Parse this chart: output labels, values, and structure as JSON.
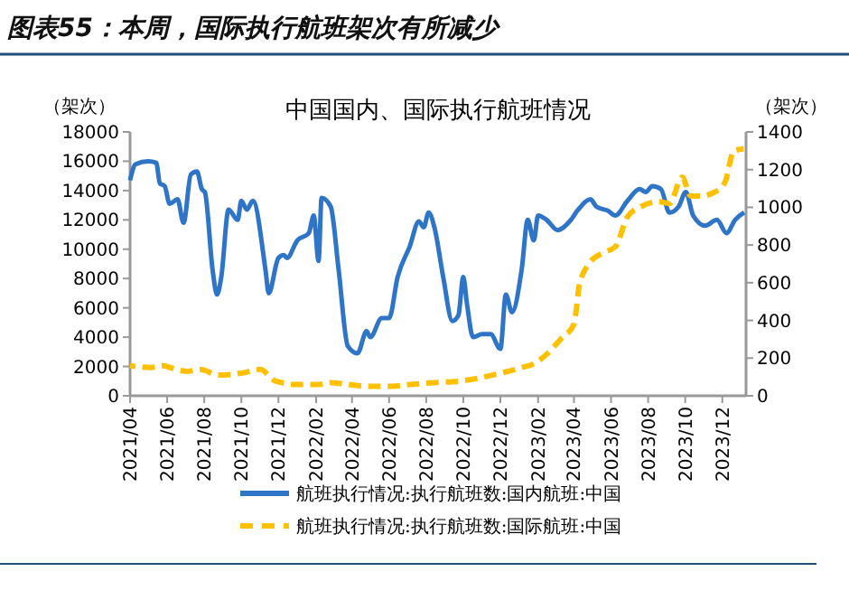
{
  "chart_data": {
    "type": "line",
    "title": "图表55：本周，国际执行航班架次有所减少",
    "subtitle": "中国国内、国际执行航班情况",
    "ylabel": "（架次）",
    "y2label": "（架次）",
    "xlim": [
      "2021-04-01",
      "2024-01-09"
    ],
    "xticks": [
      {
        "value": "2021-04",
        "label": "2021/04"
      },
      {
        "value": "2021-06",
        "label": "2021/06"
      },
      {
        "value": "2021-08",
        "label": "2021/08"
      },
      {
        "value": "2021-10",
        "label": "2021/10"
      },
      {
        "value": "2021-12",
        "label": "2021/12"
      },
      {
        "value": "2022-02",
        "label": "2022/02"
      },
      {
        "value": "2022-04",
        "label": "2022/04"
      },
      {
        "value": "2022-06",
        "label": "2022/06"
      },
      {
        "value": "2022-08",
        "label": "2022/08"
      },
      {
        "value": "2022-10",
        "label": "2022/10"
      },
      {
        "value": "2022-12",
        "label": "2022/12"
      },
      {
        "value": "2023-02",
        "label": "2023/02"
      },
      {
        "value": "2023-04",
        "label": "2023/04"
      },
      {
        "value": "2023-06",
        "label": "2023/06"
      },
      {
        "value": "2023-08",
        "label": "2023/08"
      },
      {
        "value": "2023-10",
        "label": "2023/10"
      },
      {
        "value": "2023-12",
        "label": "2023/12"
      }
    ],
    "ylim": [
      0,
      18000
    ],
    "yticks": [
      0,
      2000,
      4000,
      6000,
      8000,
      10000,
      12000,
      14000,
      16000,
      18000
    ],
    "y2lim": [
      0,
      1400
    ],
    "y2ticks": [
      0,
      200,
      400,
      600,
      800,
      1000,
      1200,
      1400
    ],
    "legend": "bottom",
    "grid": false,
    "series": [
      {
        "name": "航班执行情况:执行航班数:国内航班:中国",
        "color": "#2e75c8",
        "line_style": "solid",
        "x": [
          "2021-04-01",
          "2021-04-10",
          "2021-05-01",
          "2021-05-14",
          "2021-05-20",
          "2021-05-28",
          "2021-06-05",
          "2021-06-18",
          "2021-06-28",
          "2021-07-10",
          "2021-07-20",
          "2021-07-28",
          "2021-08-02",
          "2021-08-15",
          "2021-08-22",
          "2021-08-29",
          "2021-09-10",
          "2021-09-25",
          "2021-10-01",
          "2021-10-10",
          "2021-10-20",
          "2021-11-10",
          "2021-11-15",
          "2021-12-01",
          "2021-12-10",
          "2021-12-15",
          "2022-01-01",
          "2022-01-20",
          "2022-01-28",
          "2022-02-05",
          "2022-02-10",
          "2022-02-25",
          "2022-03-10",
          "2022-03-25",
          "2022-04-10",
          "2022-04-25",
          "2022-05-01",
          "2022-05-20",
          "2022-06-01",
          "2022-06-15",
          "2022-07-05",
          "2022-07-20",
          "2022-07-28",
          "2022-08-05",
          "2022-08-15",
          "2022-08-29",
          "2022-09-13",
          "2022-09-23",
          "2022-10-01",
          "2022-10-07",
          "2022-10-17",
          "2022-11-01",
          "2022-11-15",
          "2022-12-01",
          "2022-12-10",
          "2022-12-20",
          "2023-01-05",
          "2023-01-15",
          "2023-01-25",
          "2023-02-01",
          "2023-02-15",
          "2023-03-05",
          "2023-03-25",
          "2023-04-08",
          "2023-04-28",
          "2023-05-08",
          "2023-05-28",
          "2023-06-08",
          "2023-06-28",
          "2023-07-18",
          "2023-07-28",
          "2023-08-08",
          "2023-08-22",
          "2023-09-05",
          "2023-09-20",
          "2023-10-02",
          "2023-10-14",
          "2023-11-03",
          "2023-11-22",
          "2023-12-08",
          "2023-12-22",
          "2024-01-06"
        ],
        "values": [
          14700,
          15800,
          16000,
          15900,
          14500,
          14300,
          13100,
          13400,
          11800,
          15100,
          15300,
          14100,
          13900,
          8500,
          6900,
          8100,
          12700,
          12000,
          13300,
          12700,
          13300,
          8500,
          7000,
          9400,
          9600,
          9400,
          10600,
          11100,
          12300,
          9200,
          13500,
          12900,
          8600,
          3400,
          2900,
          4400,
          4000,
          5300,
          5300,
          8100,
          10200,
          11900,
          11500,
          12500,
          11400,
          8100,
          5100,
          5500,
          8100,
          6300,
          4000,
          4200,
          4200,
          3200,
          6900,
          5700,
          8600,
          12000,
          10600,
          12300,
          12000,
          11300,
          11900,
          12700,
          13400,
          12900,
          12600,
          12300,
          13300,
          14100,
          13900,
          14300,
          14100,
          12500,
          12900,
          13900,
          12300,
          11600,
          12000,
          11100,
          12000,
          12500
        ]
      },
      {
        "name": "航班执行情况:执行航班数:国际航班:中国",
        "color": "#ffc000",
        "axis": "y2",
        "line_style": "dashed",
        "x": [
          "2021-04-01",
          "2021-05-05",
          "2021-05-25",
          "2021-06-15",
          "2021-07-05",
          "2021-07-25",
          "2021-08-25",
          "2021-10-01",
          "2021-11-01",
          "2021-11-25",
          "2022-01-01",
          "2022-02-05",
          "2022-02-25",
          "2022-03-25",
          "2022-05-01",
          "2022-06-01",
          "2022-07-05",
          "2022-08-15",
          "2022-10-01",
          "2022-12-01",
          "2023-01-05",
          "2023-01-25",
          "2023-02-15",
          "2023-03-10",
          "2023-04-01",
          "2023-04-10",
          "2023-04-28",
          "2023-05-20",
          "2023-06-08",
          "2023-06-28",
          "2023-07-18",
          "2023-08-18",
          "2023-09-05",
          "2023-09-26",
          "2023-10-10",
          "2023-10-26",
          "2023-11-18",
          "2023-12-05",
          "2023-12-20",
          "2024-01-05"
        ],
        "values": [
          160,
          150,
          160,
          140,
          130,
          140,
          110,
          120,
          140,
          80,
          60,
          60,
          70,
          60,
          50,
          50,
          60,
          70,
          80,
          120,
          150,
          170,
          220,
          300,
          380,
          590,
          710,
          760,
          790,
          950,
          1000,
          1030,
          1020,
          1160,
          1060,
          1060,
          1080,
          1130,
          1300,
          1310
        ]
      }
    ]
  }
}
